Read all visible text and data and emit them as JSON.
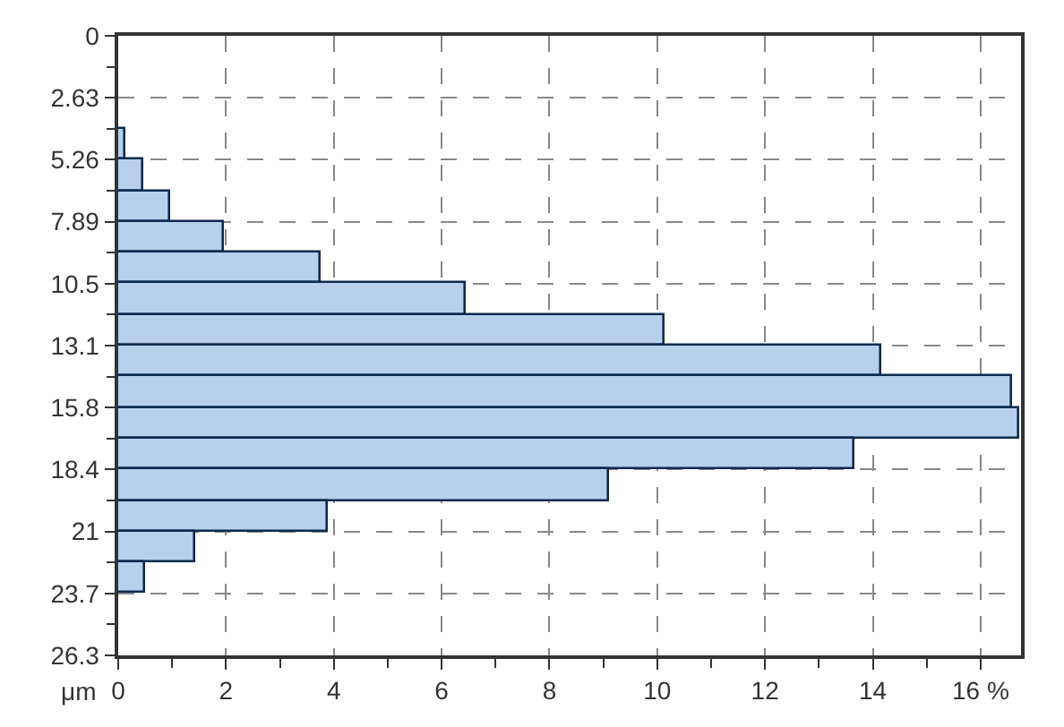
{
  "chart_data": {
    "type": "histogram",
    "orientation": "horizontal",
    "ylabel": "μm",
    "bins": [
      3.945,
      5.26,
      6.575,
      7.89,
      9.205,
      10.52,
      11.835,
      13.15,
      14.465,
      15.78,
      17.095,
      18.41,
      19.725,
      21.04,
      22.355,
      23.67
    ],
    "values": [
      0.13,
      0.47,
      0.98,
      1.97,
      3.75,
      6.45,
      10.14,
      14.16,
      16.58,
      16.73,
      13.65,
      9.1,
      3.88,
      1.42,
      0.51
    ],
    "color": "#b7d1ec",
    "xlim": [
      0,
      16.75
    ],
    "xticks": [
      0,
      {
        "value": 1,
        "label": null
      },
      2,
      {
        "value": 3,
        "label": null
      },
      4,
      {
        "value": 5,
        "label": null
      },
      6,
      {
        "value": 7,
        "label": null
      },
      8,
      {
        "value": 9,
        "label": null
      },
      10,
      {
        "value": 11,
        "label": null
      },
      12,
      {
        "value": 13,
        "label": null
      },
      14,
      {
        "value": 15,
        "label": null
      },
      {
        "value": 16,
        "label": "16 %"
      }
    ],
    "ylim": [
      26.3,
      0
    ],
    "yticks": [
      0,
      {
        "value": 1.315,
        "label": null
      },
      2.63,
      {
        "value": 3.945,
        "label": null
      },
      5.26,
      {
        "value": 6.575,
        "label": null
      },
      7.89,
      {
        "value": 9.205,
        "label": null
      },
      {
        "value": 10.52,
        "label": "10.5"
      },
      {
        "value": 11.835,
        "label": null
      },
      {
        "value": 13.15,
        "label": "13.1"
      },
      {
        "value": 14.465,
        "label": null
      },
      {
        "value": 15.78,
        "label": "15.8"
      },
      {
        "value": 17.095,
        "label": null
      },
      {
        "value": 18.41,
        "label": "18.4"
      },
      {
        "value": 19.725,
        "label": null
      },
      {
        "value": 21.04,
        "label": "21"
      },
      {
        "value": 22.355,
        "label": null
      },
      {
        "value": 23.67,
        "label": "23.7"
      },
      {
        "value": 24.985,
        "label": null
      },
      26.3
    ],
    "grid": true
  }
}
